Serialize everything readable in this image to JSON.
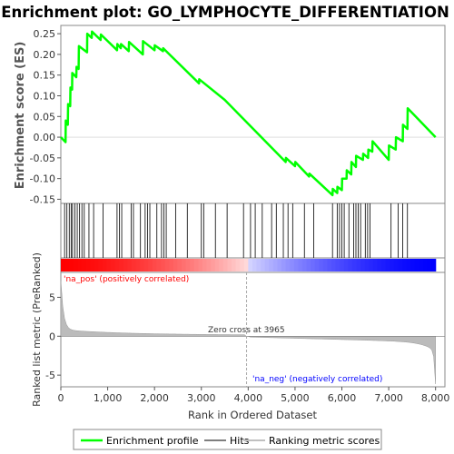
{
  "chart_data": {
    "type": "line",
    "title": "Enrichment plot: GO_LYMPHOCYTE_DIFFERENTIATION",
    "ylabel_top": "Enrichment score (ES)",
    "ylabel_bottom": "Ranked list metric (PreRanked)",
    "xlabel": "Rank in Ordered Dataset",
    "xlim": [
      0,
      8200
    ],
    "ylim_es": [
      -0.16,
      0.27
    ],
    "ylim_metric": [
      -6.5,
      8.2
    ],
    "x_ticks": [
      0,
      1000,
      2000,
      3000,
      4000,
      5000,
      6000,
      7000,
      8000
    ],
    "x_tick_labels": [
      "0",
      "1,000",
      "2,000",
      "3,000",
      "4,000",
      "5,000",
      "6,000",
      "7,000",
      "8,000"
    ],
    "es_ticks": [
      0.25,
      0.2,
      0.15,
      0.1,
      0.05,
      0.0,
      -0.05,
      -0.1,
      -0.15
    ],
    "es_tick_labels": [
      "0.25",
      "0.20",
      "0.15",
      "0.10",
      "0.05",
      "0.00",
      "-0.05",
      "-0.10",
      "-0.15"
    ],
    "metric_ticks": [
      5,
      0,
      -5
    ],
    "metric_tick_labels": [
      "5",
      "0",
      "-5"
    ],
    "zero_cross": 3965,
    "zero_cross_label": "Zero cross at 3965",
    "pos_label": "'na_pos' (positively correlated)",
    "neg_label": "'na_neg' (negatively correlated)",
    "hits": [
      80,
      130,
      180,
      220,
      250,
      300,
      350,
      400,
      450,
      500,
      600,
      700,
      900,
      1200,
      1250,
      1300,
      1500,
      1550,
      1700,
      1800,
      1850,
      1900,
      2050,
      2150,
      2200,
      2250,
      2450,
      2700,
      3000,
      3050,
      3300,
      3550,
      3900,
      4050,
      4150,
      4300,
      4500,
      4600,
      4750,
      4850,
      4950,
      5200,
      5400,
      5800,
      5900,
      5950,
      6000,
      6050,
      6150,
      6250,
      6300,
      6350,
      6400,
      6500,
      6550,
      6600,
      7050,
      7200,
      7300,
      7400
    ],
    "running_es": [
      [
        0,
        0.0
      ],
      [
        100,
        -0.012
      ],
      [
        105,
        0.04
      ],
      [
        150,
        0.03
      ],
      [
        155,
        0.08
      ],
      [
        200,
        0.075
      ],
      [
        205,
        0.12
      ],
      [
        240,
        0.115
      ],
      [
        245,
        0.155
      ],
      [
        330,
        0.145
      ],
      [
        335,
        0.17
      ],
      [
        380,
        0.165
      ],
      [
        385,
        0.22
      ],
      [
        560,
        0.205
      ],
      [
        565,
        0.25
      ],
      [
        660,
        0.24
      ],
      [
        665,
        0.255
      ],
      [
        850,
        0.235
      ],
      [
        855,
        0.248
      ],
      [
        1200,
        0.21
      ],
      [
        1205,
        0.225
      ],
      [
        1280,
        0.215
      ],
      [
        1285,
        0.225
      ],
      [
        1450,
        0.208
      ],
      [
        1455,
        0.23
      ],
      [
        1750,
        0.2
      ],
      [
        1755,
        0.232
      ],
      [
        2000,
        0.21
      ],
      [
        2005,
        0.222
      ],
      [
        2180,
        0.208
      ],
      [
        2185,
        0.215
      ],
      [
        2950,
        0.13
      ],
      [
        2955,
        0.14
      ],
      [
        3500,
        0.09
      ],
      [
        4800,
        -0.06
      ],
      [
        4805,
        -0.05
      ],
      [
        5000,
        -0.07
      ],
      [
        5005,
        -0.06
      ],
      [
        5300,
        -0.095
      ],
      [
        5305,
        -0.088
      ],
      [
        5800,
        -0.14
      ],
      [
        5805,
        -0.125
      ],
      [
        5900,
        -0.135
      ],
      [
        5905,
        -0.12
      ],
      [
        6000,
        -0.128
      ],
      [
        6005,
        -0.1
      ],
      [
        6100,
        -0.1
      ],
      [
        6105,
        -0.08
      ],
      [
        6200,
        -0.09
      ],
      [
        6205,
        -0.06
      ],
      [
        6300,
        -0.072
      ],
      [
        6305,
        -0.045
      ],
      [
        6450,
        -0.055
      ],
      [
        6455,
        -0.04
      ],
      [
        6560,
        -0.05
      ],
      [
        6565,
        -0.03
      ],
      [
        6650,
        -0.035
      ],
      [
        6655,
        -0.01
      ],
      [
        7000,
        -0.055
      ],
      [
        7005,
        -0.02
      ],
      [
        7150,
        -0.03
      ],
      [
        7155,
        0.0
      ],
      [
        7300,
        -0.01
      ],
      [
        7305,
        0.03
      ],
      [
        7400,
        0.02
      ],
      [
        7405,
        0.07
      ],
      [
        8000,
        0.0
      ]
    ]
  },
  "legend": {
    "items": [
      {
        "label": "Enrichment profile",
        "color": "#00ff00"
      },
      {
        "label": "Hits",
        "color": "#7f7f7f"
      },
      {
        "label": "Ranking metric scores",
        "color": "#c0c0c0"
      }
    ]
  },
  "colors": {
    "es_line": "#00ff00",
    "metric_fill": "#bbbbbb",
    "zero_cross_line": "#aaaaaa",
    "pos_label": "#ff0000",
    "neg_label": "#0000ff",
    "heat_pos": "#ff0000",
    "heat_mid": "#ffffff",
    "heat_neg": "#0000ff"
  }
}
